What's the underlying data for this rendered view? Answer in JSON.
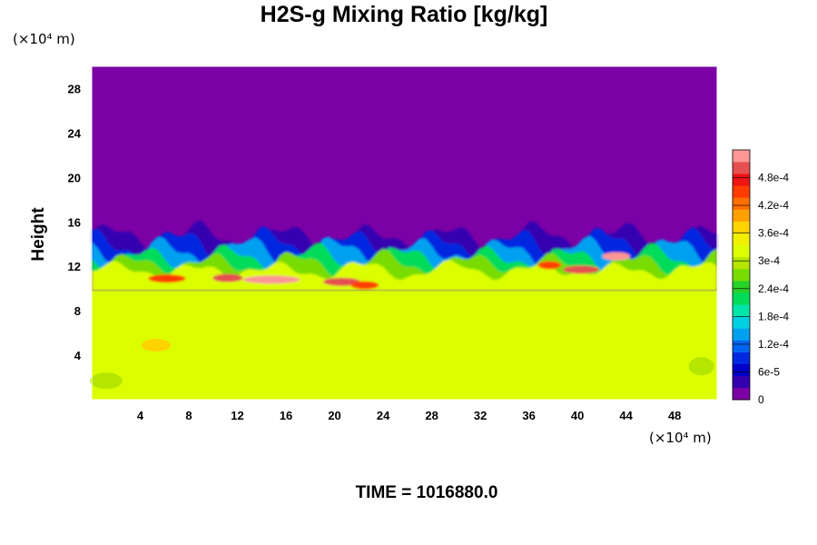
{
  "title": "H2S-g Mixing Ratio [kg/kg]",
  "time_label": "TIME = 1016880.0",
  "chart_data": {
    "type": "heatmap",
    "title": "H2S-g Mixing Ratio [kg/kg]",
    "ylabel": "Height",
    "xunit": "(×10⁴ m)",
    "yunit": "(×10⁴ m)",
    "xlim": [
      0,
      51.5
    ],
    "ylim": [
      0,
      30
    ],
    "xticks": [
      "4",
      "8",
      "12",
      "16",
      "20",
      "24",
      "28",
      "32",
      "36",
      "40",
      "44",
      "48"
    ],
    "xtick_values": [
      4,
      8,
      12,
      16,
      20,
      24,
      28,
      32,
      36,
      40,
      44,
      48
    ],
    "yticks": [
      "4",
      "8",
      "12",
      "16",
      "20",
      "24",
      "28"
    ],
    "ytick_values": [
      4,
      8,
      12,
      16,
      20,
      24,
      28
    ],
    "colorbar": {
      "min": 0,
      "max": 0.00054,
      "tick_labels": [
        "0",
        "6e-5",
        "1.2e-4",
        "1.8e-4",
        "2.4e-4",
        "3e-4",
        "3.6e-4",
        "4.2e-4",
        "4.8e-4"
      ],
      "tick_values": [
        0,
        6e-05,
        0.00012,
        0.00018,
        0.00024,
        0.0003,
        0.00036,
        0.00042,
        0.00048
      ],
      "colors": [
        "#7b00a5",
        "#3500b0",
        "#0000c8",
        "#0028e0",
        "#0064f0",
        "#00a0f0",
        "#00d0e0",
        "#00e6a8",
        "#00dc5a",
        "#28d228",
        "#78dc00",
        "#b4e600",
        "#dcff00",
        "#f0f000",
        "#ffd200",
        "#ffa000",
        "#ff6e00",
        "#ff3c00",
        "#f01414",
        "#e65050",
        "#ff9696"
      ]
    },
    "field_summary": {
      "lower_layer_value": 0.00033,
      "upper_layer_value": 0,
      "interface_height": 14.5,
      "peak_value": 0.0005
    }
  }
}
